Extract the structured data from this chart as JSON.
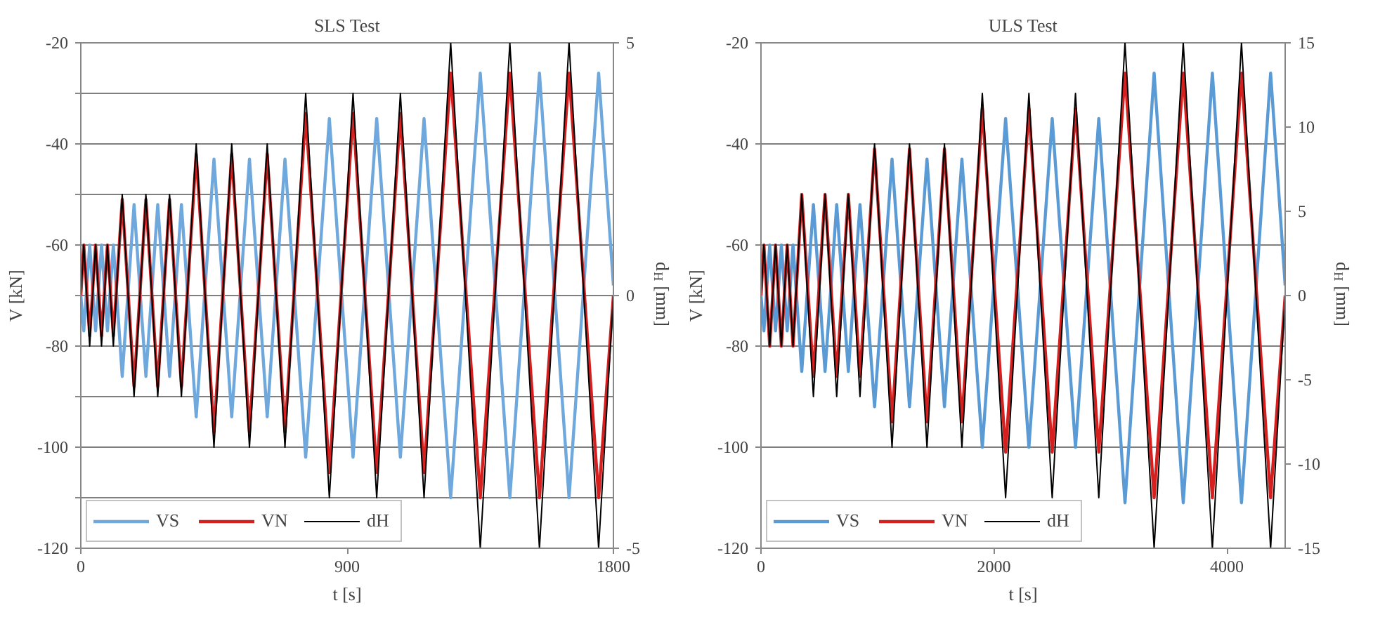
{
  "chart_data": [
    {
      "type": "line",
      "title": "SLS Test",
      "xlabel": "t [s]",
      "ylabel": "V [kN]",
      "y2label": "d$_{H}$ [mm]",
      "x": [
        0,
        10,
        30,
        50,
        70,
        90,
        110,
        140,
        180,
        220,
        260,
        300,
        340,
        390,
        450,
        510,
        570,
        630,
        690,
        760,
        840,
        920,
        1000,
        1080,
        1160,
        1250,
        1350,
        1450,
        1550,
        1650,
        1750,
        1800
      ],
      "xlim": [
        0,
        1800
      ],
      "xticks": [
        0,
        900,
        1800
      ],
      "ylim": [
        -120,
        -20
      ],
      "yticks": [
        -120,
        {
          "value": -110,
          "label": null
        },
        -100,
        {
          "value": -90,
          "label": null
        },
        -80,
        {
          "value": -70,
          "label": null
        },
        -60,
        {
          "value": -50,
          "label": null
        },
        -40,
        {
          "value": -30,
          "label": null
        },
        -20
      ],
      "y2lim": [
        -5,
        5
      ],
      "y2ticks": [
        -5,
        0,
        5
      ],
      "grid": "y",
      "legend": "bottom left",
      "line_style": "solid",
      "marker": "none",
      "series": [
        {
          "name": "VS",
          "color": "#6fa8dc",
          "values": [
            -70,
            -77,
            -60,
            -77,
            -60,
            -77,
            -60,
            -86,
            -52,
            -86,
            -52,
            -86,
            -52,
            -94,
            -43,
            -94,
            -43,
            -94,
            -43,
            -102,
            -35,
            -102,
            -35,
            -102,
            -35,
            -110,
            -26,
            -110,
            -26,
            -110,
            -26,
            -68
          ]
        },
        {
          "name": "VN",
          "color": "#d62020",
          "values": [
            -70,
            -60,
            -78,
            -60,
            -78,
            -60,
            -78,
            -51,
            -88,
            -51,
            -88,
            -51,
            -88,
            -42,
            -97,
            -42,
            -97,
            -42,
            -97,
            -34,
            -105,
            -34,
            -105,
            -34,
            -105,
            -26,
            -110,
            -26,
            -110,
            -26,
            -110,
            -70
          ]
        },
        {
          "name": "dH",
          "color": "#000000",
          "axis": "y2",
          "values": [
            0,
            1,
            -1,
            1,
            -1,
            1,
            -1,
            2,
            -2,
            2,
            -2,
            2,
            -2,
            3,
            -3,
            3,
            -3,
            3,
            -3,
            4,
            -4,
            4,
            -4,
            4,
            -4,
            5,
            -5,
            5,
            -5,
            5,
            -5,
            0
          ]
        }
      ]
    },
    {
      "type": "line",
      "title": "ULS Test",
      "xlabel": "t [s]",
      "ylabel": "V [kN]",
      "y2label": "d$_{H}$ [mm]",
      "x": [
        0,
        25,
        75,
        125,
        175,
        225,
        275,
        350,
        450,
        550,
        650,
        750,
        850,
        975,
        1125,
        1275,
        1425,
        1575,
        1725,
        1900,
        2100,
        2300,
        2500,
        2700,
        2900,
        3125,
        3375,
        3625,
        3875,
        4125,
        4375,
        4500
      ],
      "xlim": [
        0,
        4500
      ],
      "xticks": [
        0,
        2000,
        4000
      ],
      "ylim": [
        -120,
        -20
      ],
      "yticks": [
        -120,
        -100,
        -80,
        -60,
        -40,
        -20
      ],
      "y2lim": [
        -15,
        15
      ],
      "y2ticks": [
        -15,
        -10,
        -5,
        0,
        5,
        10,
        15
      ],
      "grid": "y",
      "legend": "bottom left",
      "line_style": "solid",
      "marker": "none",
      "series": [
        {
          "name": "VS",
          "color": "#5b9bd5",
          "values": [
            -70,
            -77,
            -60,
            -77,
            -60,
            -77,
            -60,
            -85,
            -52,
            -85,
            -52,
            -85,
            -52,
            -92,
            -43,
            -92,
            -43,
            -92,
            -43,
            -100,
            -35,
            -100,
            -35,
            -100,
            -35,
            -111,
            -26,
            -111,
            -26,
            -111,
            -26,
            -68
          ]
        },
        {
          "name": "VN",
          "color": "#d62020",
          "values": [
            -70,
            -60,
            -80,
            -60,
            -80,
            -60,
            -80,
            -50,
            -86,
            -50,
            -86,
            -50,
            -86,
            -41,
            -95,
            -41,
            -95,
            -41,
            -95,
            -33,
            -101,
            -33,
            -101,
            -33,
            -101,
            -26,
            -110,
            -26,
            -110,
            -26,
            -110,
            -70
          ]
        },
        {
          "name": "dH",
          "color": "#000000",
          "axis": "y2",
          "values": [
            0,
            3,
            -3,
            3,
            -3,
            3,
            -3,
            6,
            -6,
            6,
            -6,
            6,
            -6,
            9,
            -9,
            9,
            -9,
            9,
            -9,
            12,
            -12,
            12,
            -12,
            12,
            -12,
            15,
            -15,
            15,
            -15,
            15,
            -15,
            0
          ]
        }
      ]
    }
  ]
}
